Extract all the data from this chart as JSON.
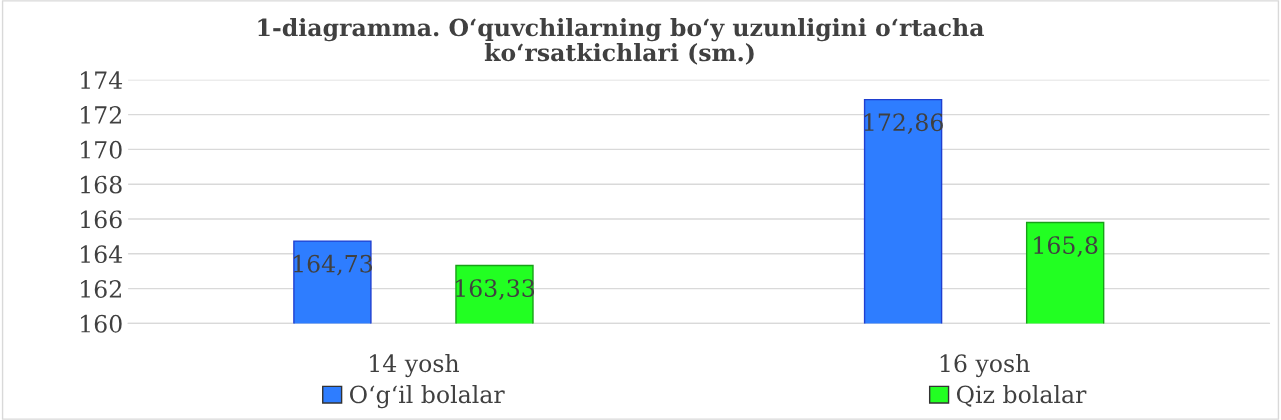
{
  "chart_data": {
    "type": "bar",
    "title": "1-diagramma. O‘quvchilarning bo‘y uzunligini o‘rtacha\nko‘rsatkichlari (sm.)",
    "categories": [
      "14 yosh",
      "16 yosh"
    ],
    "series": [
      {
        "name": "O‘g‘il bolalar",
        "color": "#2e7dff",
        "values": [
          164.73,
          172.86
        ],
        "value_labels": [
          "164,73",
          "172,86"
        ]
      },
      {
        "name": "Qiz bolalar",
        "color": "#22ff22",
        "values": [
          163.33,
          165.8
        ],
        "value_labels": [
          "163,33",
          "165,8"
        ]
      }
    ],
    "ylim": [
      160,
      174
    ],
    "yticks": [
      160,
      162,
      164,
      166,
      168,
      170,
      172,
      174
    ],
    "grid": "y",
    "legend": "bottom"
  }
}
